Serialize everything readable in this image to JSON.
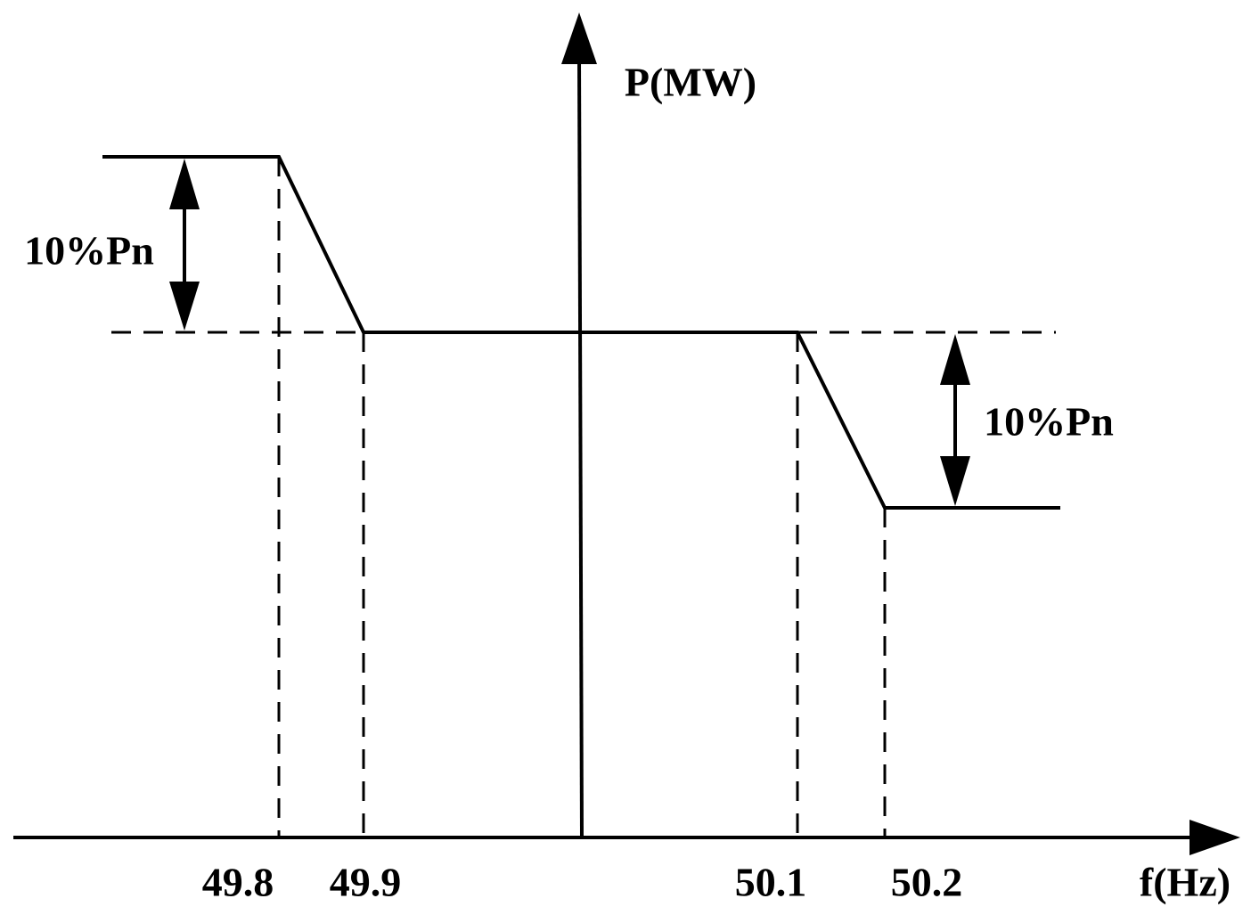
{
  "axes": {
    "x_label": "f(Hz)",
    "y_label": "P(MW)"
  },
  "ticks": [
    "49.8",
    "49.9",
    "50.1",
    "50.2"
  ],
  "annotations": [
    "10%Pn",
    "10%Pn"
  ]
}
